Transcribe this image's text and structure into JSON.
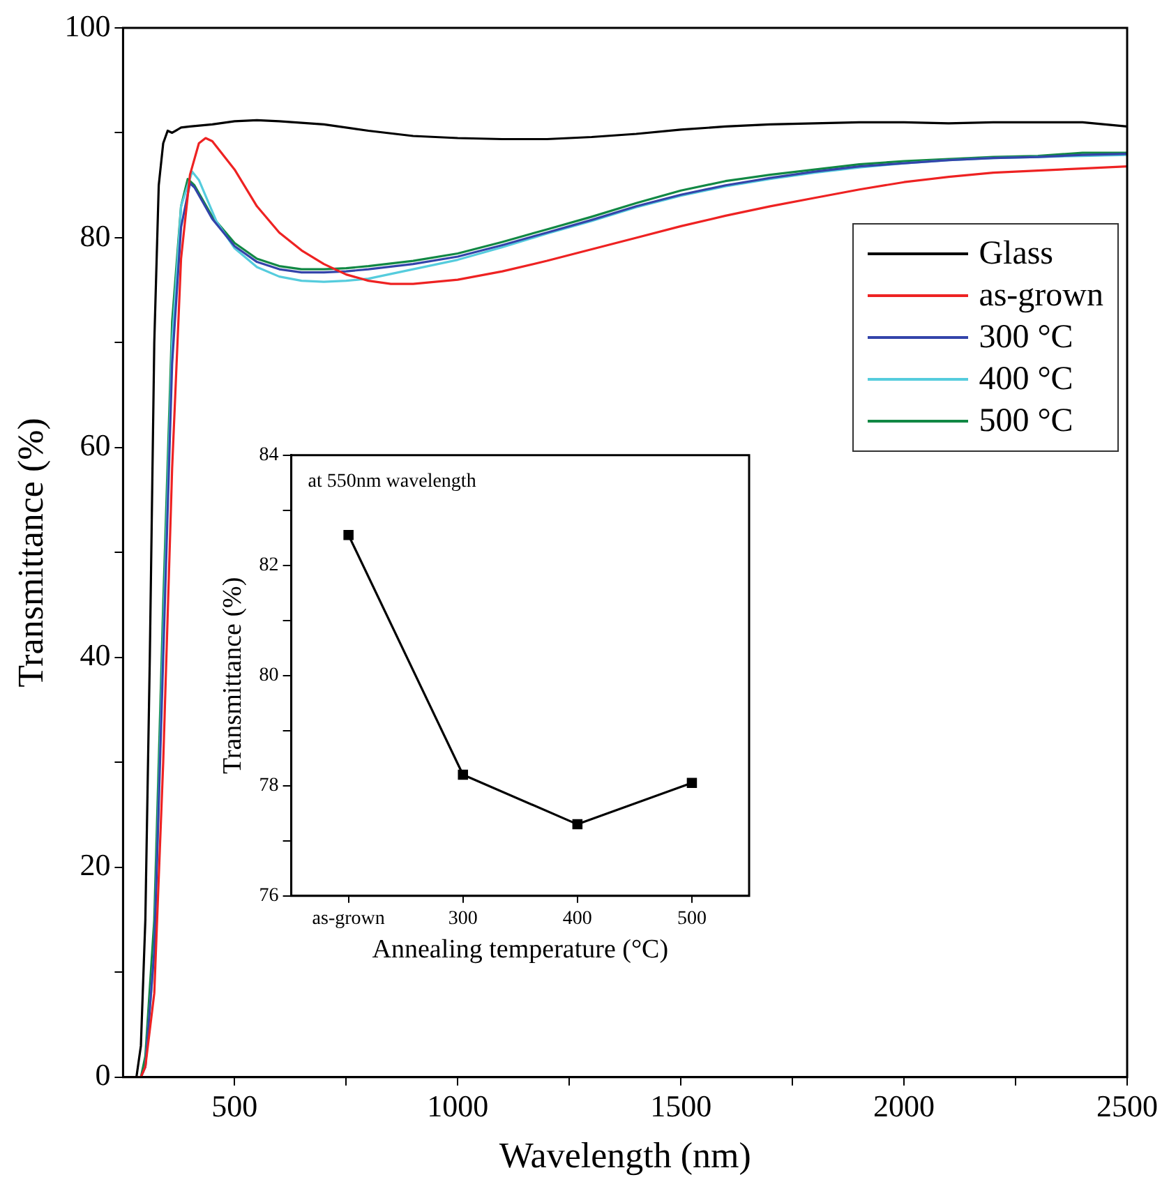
{
  "chart_data": [
    {
      "type": "line",
      "xlabel": "Wavelength (nm)",
      "ylabel": "Transmittance (%)",
      "xlim": [
        250,
        2500
      ],
      "ylim": [
        0,
        100
      ],
      "xticks": [
        500,
        {
          "value": 750,
          "label": null
        },
        1000,
        {
          "value": 1250,
          "label": null
        },
        1500,
        {
          "value": 1750,
          "label": null
        },
        2000,
        {
          "value": 2250,
          "label": null
        },
        2500
      ],
      "yticks": [
        0,
        {
          "value": 10,
          "label": null
        },
        20,
        {
          "value": 30,
          "label": null
        },
        40,
        {
          "value": 50,
          "label": null
        },
        60,
        {
          "value": 70,
          "label": null
        },
        80,
        {
          "value": 90,
          "label": null
        },
        100
      ],
      "grid": false,
      "legend": "right",
      "marker": "none",
      "line_style": "solid",
      "series": [
        {
          "name": "Glass",
          "color": "#000000",
          "x": [
            250,
            280,
            290,
            300,
            310,
            320,
            330,
            340,
            350,
            360,
            380,
            400,
            450,
            500,
            550,
            600,
            700,
            800,
            900,
            1000,
            1100,
            1200,
            1300,
            1400,
            1500,
            1600,
            1700,
            1800,
            1900,
            2000,
            2100,
            2200,
            2300,
            2400,
            2500
          ],
          "values": [
            0,
            0,
            3,
            15,
            40,
            70,
            85,
            89,
            90.2,
            90,
            90.5,
            90.6,
            90.8,
            91.1,
            91.2,
            91.1,
            90.8,
            90.2,
            89.7,
            89.5,
            89.4,
            89.4,
            89.6,
            89.9,
            90.3,
            90.6,
            90.8,
            90.9,
            91,
            91,
            90.9,
            91,
            91,
            91,
            90.6
          ]
        },
        {
          "name": "as-grown",
          "color": "#ee2222",
          "x": [
            250,
            290,
            300,
            320,
            340,
            360,
            380,
            400,
            420,
            435,
            450,
            500,
            550,
            600,
            650,
            700,
            750,
            800,
            850,
            900,
            1000,
            1100,
            1200,
            1300,
            1400,
            1500,
            1600,
            1700,
            1800,
            1900,
            2000,
            2100,
            2200,
            2300,
            2400,
            2500
          ],
          "values": [
            0,
            0,
            1,
            8,
            30,
            58,
            78,
            86,
            89,
            89.5,
            89.2,
            86.5,
            83,
            80.5,
            78.8,
            77.5,
            76.5,
            75.9,
            75.6,
            75.6,
            76,
            76.8,
            77.8,
            78.9,
            80,
            81.1,
            82.1,
            83,
            83.8,
            84.6,
            85.3,
            85.8,
            86.2,
            86.4,
            86.6,
            86.8
          ]
        },
        {
          "name": "300 °C",
          "color": "#3344aa",
          "x": [
            250,
            290,
            300,
            320,
            340,
            360,
            380,
            400,
            410,
            430,
            450,
            500,
            550,
            600,
            650,
            700,
            750,
            800,
            900,
            1000,
            1100,
            1200,
            1300,
            1400,
            1500,
            1600,
            1700,
            1800,
            1900,
            2000,
            2100,
            2200,
            2300,
            2400,
            2500
          ],
          "values": [
            0,
            0,
            1,
            12,
            40,
            68,
            81,
            85.2,
            84.8,
            83.3,
            81.8,
            79.2,
            77.7,
            77,
            76.7,
            76.7,
            76.8,
            77,
            77.5,
            78.2,
            79.3,
            80.5,
            81.7,
            83,
            84.1,
            85,
            85.7,
            86.3,
            86.8,
            87.1,
            87.4,
            87.6,
            87.7,
            87.9,
            88
          ]
        },
        {
          "name": "400 °C",
          "color": "#55ccdd",
          "x": [
            300,
            320,
            340,
            360,
            380,
            405,
            420,
            440,
            460,
            500,
            550,
            600,
            650,
            700,
            750,
            800,
            900,
            1000,
            1100,
            1200,
            1300,
            1400,
            1500,
            1600,
            1700,
            1800,
            1900,
            2000,
            2100,
            2200,
            2300,
            2400,
            2500
          ],
          "values": [
            1,
            12,
            42,
            70,
            83,
            86.3,
            85.5,
            83.5,
            81.5,
            79,
            77.2,
            76.3,
            75.9,
            75.8,
            75.9,
            76.1,
            77,
            77.9,
            79.1,
            80.4,
            81.6,
            82.9,
            84,
            84.9,
            85.6,
            86.2,
            86.7,
            87.1,
            87.4,
            87.6,
            87.7,
            87.8,
            87.9
          ]
        },
        {
          "name": "500 °C",
          "color": "#118844",
          "x": [
            250,
            290,
            300,
            320,
            340,
            360,
            380,
            395,
            410,
            430,
            450,
            500,
            550,
            600,
            650,
            700,
            750,
            800,
            900,
            1000,
            1100,
            1200,
            1300,
            1400,
            1500,
            1600,
            1700,
            1800,
            1900,
            2000,
            2100,
            2200,
            2300,
            2400,
            2500
          ],
          "values": [
            0,
            0,
            2,
            15,
            45,
            72,
            83,
            85.6,
            85,
            83.5,
            82,
            79.5,
            78,
            77.3,
            77,
            77,
            77.1,
            77.3,
            77.8,
            78.5,
            79.6,
            80.8,
            82,
            83.3,
            84.5,
            85.4,
            86,
            86.5,
            87,
            87.3,
            87.5,
            87.7,
            87.8,
            88.1,
            88.1
          ]
        }
      ]
    },
    {
      "type": "line",
      "xlabel": "Annealing temperature (°C)",
      "ylabel": "Transmittance (%)",
      "categories": [
        "as-grown",
        "300",
        "400",
        "500"
      ],
      "ylim": [
        76,
        84
      ],
      "yticks": [
        76,
        {
          "value": 77,
          "label": null
        },
        78,
        {
          "value": 79,
          "label": null
        },
        80,
        {
          "value": 81,
          "label": null
        },
        82,
        {
          "value": 83,
          "label": null
        },
        84
      ],
      "grid": false,
      "marker": "square",
      "line_style": "solid",
      "annotations": [
        "at 550nm wavelength"
      ],
      "series": [
        {
          "color": "#000000",
          "values": [
            82.55,
            78.2,
            77.3,
            78.05
          ]
        }
      ]
    }
  ]
}
